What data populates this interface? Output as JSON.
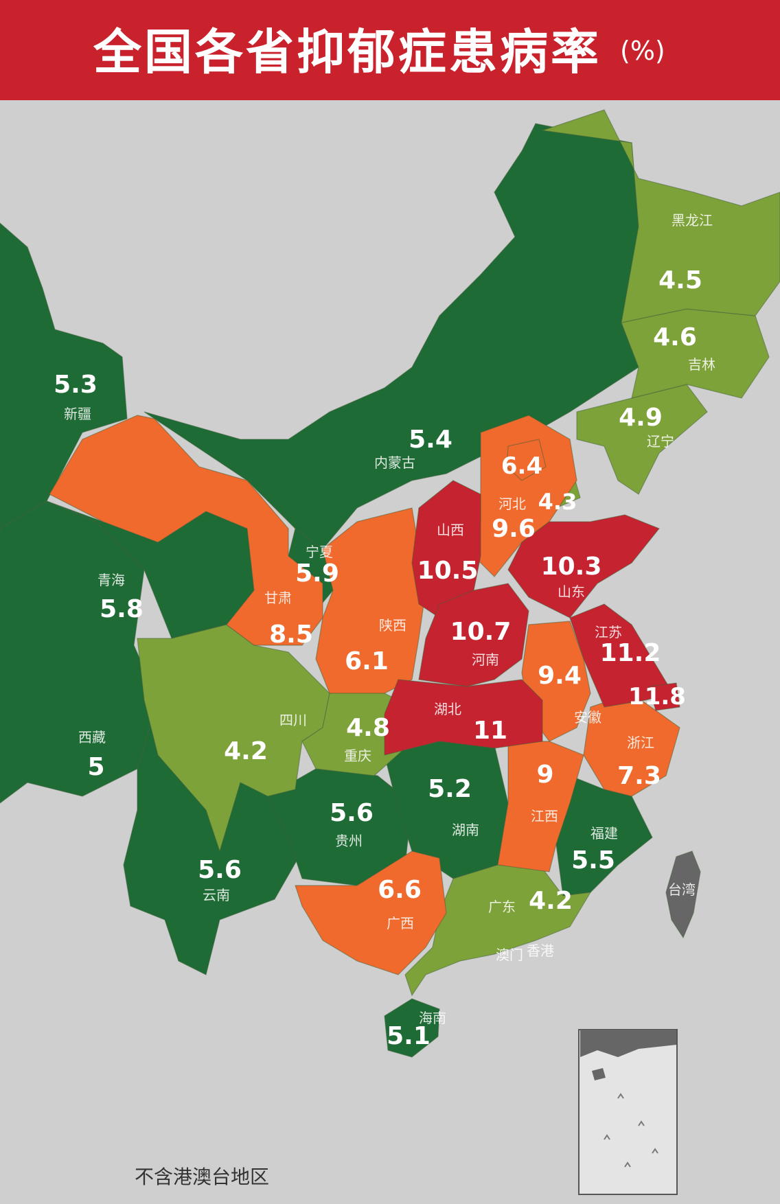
{
  "title": "全国各省抑郁症患病率",
  "unit": "(%)",
  "note": "不含港澳台地区",
  "colors": {
    "header": "#c9222c",
    "background": "#cfcfcf",
    "dark_green": "#1e6b35",
    "light_green": "#7ea23a",
    "orange": "#ef6a2c",
    "red": "#c4232f",
    "gray_region": "#666666"
  },
  "regions": [
    {
      "name": "新疆",
      "value": "5.3"
    },
    {
      "name": "西藏",
      "value": "5"
    },
    {
      "name": "青海",
      "value": "5.8"
    },
    {
      "name": "甘肃",
      "value": "8.5"
    },
    {
      "name": "内蒙古",
      "value": "5.4"
    },
    {
      "name": "宁夏",
      "value": "5.9"
    },
    {
      "name": "陕西",
      "value": "6.1"
    },
    {
      "name": "四川",
      "value": "4.2"
    },
    {
      "name": "重庆",
      "value": "4.8"
    },
    {
      "name": "云南",
      "value": "5.6"
    },
    {
      "name": "贵州",
      "value": "5.6"
    },
    {
      "name": "广西",
      "value": "6.6"
    },
    {
      "name": "湖南",
      "value": "5.2"
    },
    {
      "name": "湖北",
      "value": "11"
    },
    {
      "name": "河南",
      "value": "10.7"
    },
    {
      "name": "山西",
      "value": "10.5"
    },
    {
      "name": "河北",
      "value": "9.6"
    },
    {
      "name": "北京",
      "value": "6.4"
    },
    {
      "name": "天津",
      "value": "4.3"
    },
    {
      "name": "山东",
      "value": "10.3"
    },
    {
      "name": "江苏",
      "value": "11.2"
    },
    {
      "name": "上海",
      "value": "11.8"
    },
    {
      "name": "安徽",
      "value": "9.4"
    },
    {
      "name": "浙江",
      "value": "7.3"
    },
    {
      "name": "江西",
      "value": "9"
    },
    {
      "name": "福建",
      "value": "5.5"
    },
    {
      "name": "广东",
      "value": "4.2"
    },
    {
      "name": "海南",
      "value": "5.1"
    },
    {
      "name": "辽宁",
      "value": "4.9"
    },
    {
      "name": "吉林",
      "value": "4.6"
    },
    {
      "name": "黑龙江",
      "value": "4.5"
    },
    {
      "name": "台湾",
      "value": ""
    },
    {
      "name": "香港",
      "value": ""
    },
    {
      "name": "澳门",
      "value": ""
    }
  ]
}
